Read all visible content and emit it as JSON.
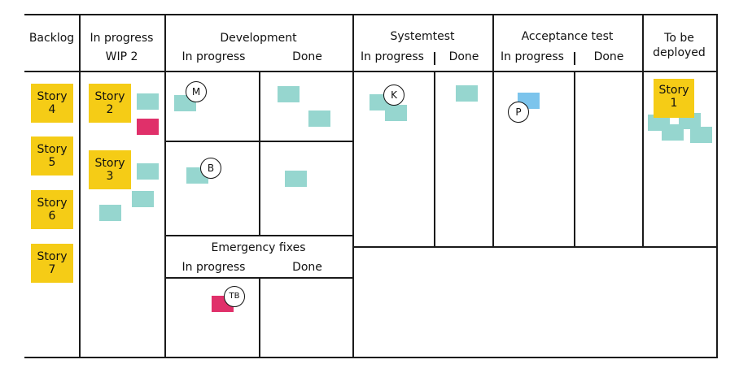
{
  "columns": {
    "backlog": "Backlog",
    "in_progress": "In progress",
    "wip": "WIP 2",
    "development": "Development",
    "systemtest": "Systemtest",
    "acceptance": "Acceptance test",
    "to_be_deployed_1": "To be",
    "to_be_deployed_2": "deployed"
  },
  "subcolumns": {
    "in_progress": "In progress",
    "done": "Done"
  },
  "emergency": {
    "title": "Emergency fixes",
    "in_progress": "In progress",
    "done": "Done"
  },
  "story_word": "Story",
  "stories": {
    "s1": "1",
    "s2": "2",
    "s3": "3",
    "s4": "4",
    "s5": "5",
    "s6": "6",
    "s7": "7"
  },
  "avatars": {
    "m": "M",
    "b": "B",
    "k": "K",
    "p": "P",
    "tb": "TB"
  },
  "colors": {
    "story": "#f5cc16",
    "task": "#96d6cf",
    "urgent": "#e0306a",
    "blocked": "#7cc4ec"
  }
}
